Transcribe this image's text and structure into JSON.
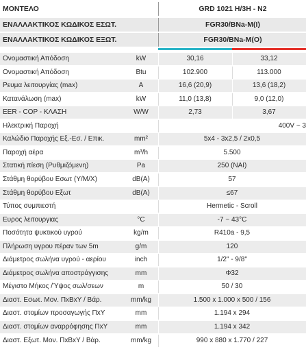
{
  "header": {
    "model_label": "ΜΟΝΤΕΛΟ",
    "model_value": "GRD 1021 H/3H - N2",
    "alt_indoor_label": "ΕΝΑΛΛΑΚΤΙΚΟΣ ΚΩΔΙΚΟΣ ΕΣΩΤ.",
    "alt_indoor_value": "FGR30/BNa-M(I)",
    "alt_outdoor_label": "ΕΝΑΛΛΑΚΤΙΚΟΣ ΚΩΔΙΚΟΣ ΕΞΩΤ.",
    "alt_outdoor_value": "FGR30/BNa-M(O)"
  },
  "accent": {
    "cooling": "#2ab4c7",
    "heating": "#e4322b"
  },
  "rows": [
    {
      "label": "Ονομαστική Απόδοση",
      "unit": "kW",
      "v1": "30,16",
      "v2": "33,12"
    },
    {
      "label": "Ονομαστική Απόδοση",
      "unit": "Btu",
      "v1": "102.900",
      "v2": "113.000"
    },
    {
      "label": "Ρευμα λειτουργίας (max)",
      "unit": "A",
      "v1": "16,6 (20,9)",
      "v2": "13,6 (18,2)"
    },
    {
      "label": "Κατανάλωση (max)",
      "unit": "kW",
      "v1": "11,0 (13,8)",
      "v2": "9,0 (12,0)"
    },
    {
      "label": "EER - COP - ΚΛΑΣΗ",
      "unit": "W/W",
      "v1": "2,73",
      "v2": "3,67"
    },
    {
      "label": "Ηλεκτρική Παροχή",
      "unit": "",
      "right": "400V ~ 3"
    },
    {
      "label": "Καλώδιο Παροχής Εξ.-Εσ. / Επικ.",
      "unit": "mm²",
      "span": "5x4 - 3x2,5 / 2x0,5"
    },
    {
      "label": "Παροχή αέρα",
      "unit": "m³/h",
      "span": "5.500"
    },
    {
      "label": "Στατική πίεση (Ρυθμιζόμενη)",
      "unit": "Pa",
      "span": "250 (ΝΑΙ)"
    },
    {
      "label": "Στάθμη θορύβου Εσωτ (Υ/Μ/Χ)",
      "unit": "dB(A)",
      "span": "57"
    },
    {
      "label": "Στάθμη θορύβου Εξωτ",
      "unit": "dB(A)",
      "span": "≤67"
    },
    {
      "label": "Τύπος συμπιεστή",
      "unit": "",
      "span": "Hermetic - Scroll"
    },
    {
      "label": "Ευρος λειτουργιας",
      "unit": "°C",
      "span": "-7 ~ 43°C"
    },
    {
      "label": "Ποσότητα ψυκτικού υγρού",
      "unit": "kg/m",
      "span": "R410a - 9,5"
    },
    {
      "label": "Πλήρωση υγρου πέραν των 5m",
      "unit": "g/m",
      "span": "120"
    },
    {
      "label": "Διάμετρος σωλήνα υγρού - αερίου",
      "unit": "inch",
      "span": "1/2\" - 9/8\""
    },
    {
      "label": "Διάμετρος σωλήνα αποστράγγισης",
      "unit": "mm",
      "span": "Φ32"
    },
    {
      "label": "Μέγιστο Μήκος /Ύψος σωλ/σεων",
      "unit": "m",
      "span": "50 / 30"
    },
    {
      "label": "Διαστ. Εσωτ. Μον. ΠxΒxΥ / Βάρ.",
      "unit": "mm/kg",
      "span": "1.500 x 1.000 x 500 / 156"
    },
    {
      "label": "Διαστ. στομίων προσαγωγής ΠxΥ",
      "unit": "mm",
      "span": "1.194 x 294"
    },
    {
      "label": "Διαστ. στομίων αναρρόφησης ΠxΥ",
      "unit": "mm",
      "span": "1.194 x 342"
    },
    {
      "label": "Διαστ. Εξωτ. Μον. ΠxΒxΥ / Βάρ.",
      "unit": "mm/kg",
      "span": "990 x 880 x 1.770 / 227"
    }
  ]
}
